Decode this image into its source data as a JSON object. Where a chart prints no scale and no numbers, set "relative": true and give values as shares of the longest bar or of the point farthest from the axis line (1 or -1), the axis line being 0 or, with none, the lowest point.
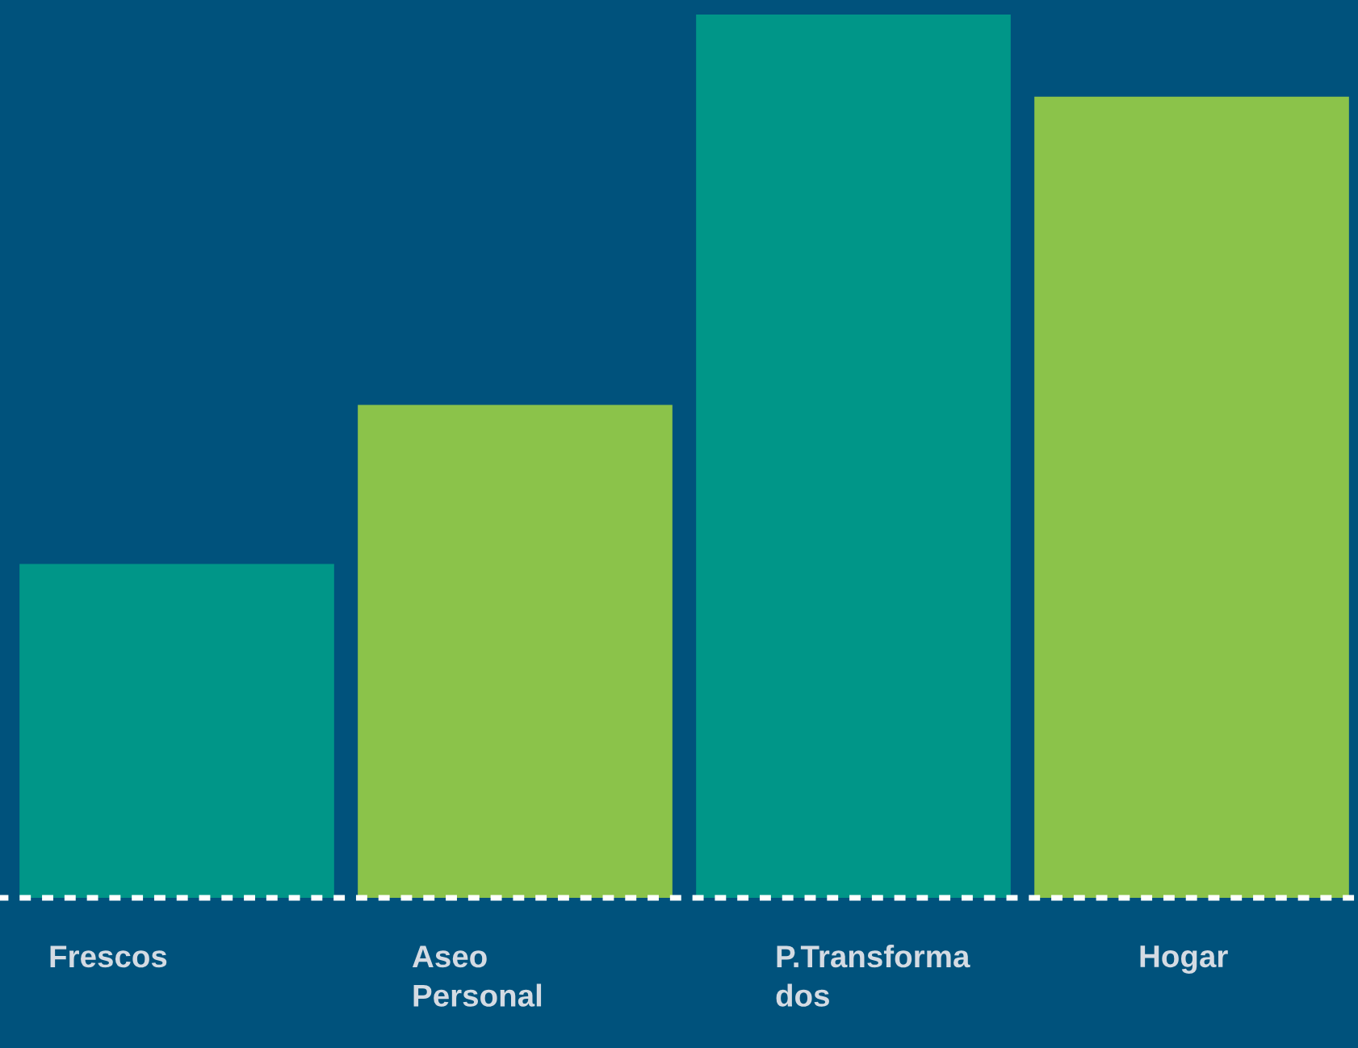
{
  "chart_data": {
    "type": "bar",
    "relative": true,
    "categories": [
      "Frescos",
      "Aseo Personal",
      "P.Transformados",
      "Hogar"
    ],
    "values": [
      0.378,
      0.558,
      1,
      0.907
    ],
    "colors": [
      "#009688",
      "#8bc34a",
      "#009688",
      "#8bc34a"
    ]
  }
}
